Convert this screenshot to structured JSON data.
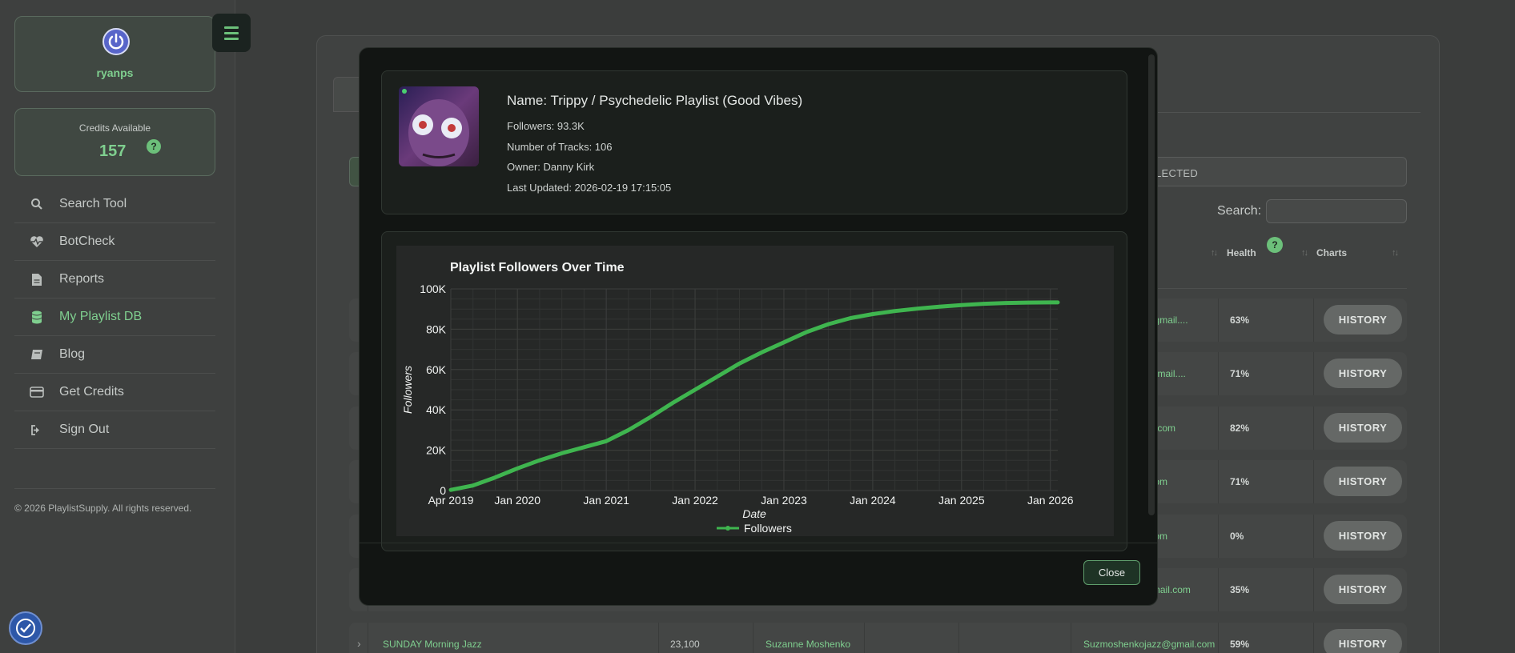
{
  "user": {
    "name": "ryanps",
    "avatar_icon": "power-icon"
  },
  "credits": {
    "label": "Credits Available",
    "value": "157",
    "help": "?"
  },
  "nav": [
    {
      "label": "Search Tool",
      "icon": "search-icon",
      "glyph": "⚲"
    },
    {
      "label": "BotCheck",
      "icon": "heartbeat-icon",
      "glyph": "♥"
    },
    {
      "label": "Reports",
      "icon": "file-icon",
      "glyph": "▤"
    },
    {
      "label": "My Playlist DB",
      "icon": "database-icon",
      "glyph": "≡"
    },
    {
      "label": "Blog",
      "icon": "book-icon",
      "glyph": "▱"
    },
    {
      "label": "Get Credits",
      "icon": "credit-card-icon",
      "glyph": "▭"
    },
    {
      "label": "Sign Out",
      "icon": "sign-out-icon",
      "glyph": "⇥"
    }
  ],
  "copyright": "© 2026 PlaylistSupply. All rights reserved.",
  "background": {
    "selected_btn": "LECTED",
    "search_label": "Search:",
    "columns": {
      "health": "Health",
      "charts": "Charts",
      "health_help": "?"
    },
    "rows": [
      {
        "email": "al@gmail....",
        "health": "63%",
        "history": "HISTORY"
      },
      {
        "email": "g@gmail....",
        "health": "71%",
        "history": "HISTORY"
      },
      {
        "email": "mail.com",
        "health": "82%",
        "history": "HISTORY"
      },
      {
        "email": "ail.com",
        "health": "71%",
        "history": "HISTORY"
      },
      {
        "email": "ail.com",
        "health": "0%",
        "history": "HISTORY"
      },
      {
        "email": "@gmail.com",
        "health": "35%",
        "history": "HISTORY"
      },
      {
        "name": "SUNDAY Morning Jazz",
        "followers": "23,100",
        "owner": "Suzanne Moshenko",
        "email": "Suzmoshenkojazz@gmail.com",
        "health": "59%",
        "history": "HISTORY"
      }
    ]
  },
  "modal": {
    "name": "Name: Trippy / Psychedelic Playlist (Good Vibes)",
    "followers": "Followers: 93.3K",
    "tracks": "Number of Tracks: 106",
    "owner": "Owner: Danny Kirk",
    "updated": "Last Updated: 2026-02-19 17:15:05",
    "close_label": "Close"
  },
  "chart_data": {
    "type": "line",
    "title": "Playlist Followers Over Time",
    "xlabel": "Date",
    "ylabel": "Followers",
    "x_ticks": [
      "Apr 2019",
      "Jan 2020",
      "Jan 2021",
      "Jan 2022",
      "Jan 2023",
      "Jan 2024",
      "Jan 2025",
      "Jan 2026"
    ],
    "y_ticks": [
      "0",
      "20K",
      "40K",
      "60K",
      "80K",
      "100K"
    ],
    "ylim": [
      0,
      100000
    ],
    "xlim": [
      "2019-04",
      "2026-02"
    ],
    "grid": true,
    "legend": "bottom",
    "color": "#3fb54f",
    "series": [
      {
        "name": "Followers",
        "x": [
          "2019-04",
          "2019-07",
          "2019-10",
          "2020-01",
          "2020-04",
          "2020-07",
          "2020-10",
          "2021-01",
          "2021-04",
          "2021-07",
          "2021-10",
          "2022-01",
          "2022-04",
          "2022-07",
          "2022-10",
          "2023-01",
          "2023-04",
          "2023-07",
          "2023-10",
          "2024-01",
          "2024-04",
          "2024-07",
          "2024-10",
          "2025-01",
          "2025-04",
          "2025-07",
          "2025-10",
          "2026-01",
          "2026-02"
        ],
        "values": [
          300,
          2500,
          6500,
          11000,
          15000,
          18500,
          21500,
          24500,
          30000,
          36500,
          43500,
          50000,
          56500,
          63000,
          68500,
          73500,
          78500,
          82500,
          85500,
          87500,
          89000,
          90200,
          91200,
          92000,
          92600,
          93000,
          93200,
          93300,
          93300
        ]
      }
    ]
  }
}
